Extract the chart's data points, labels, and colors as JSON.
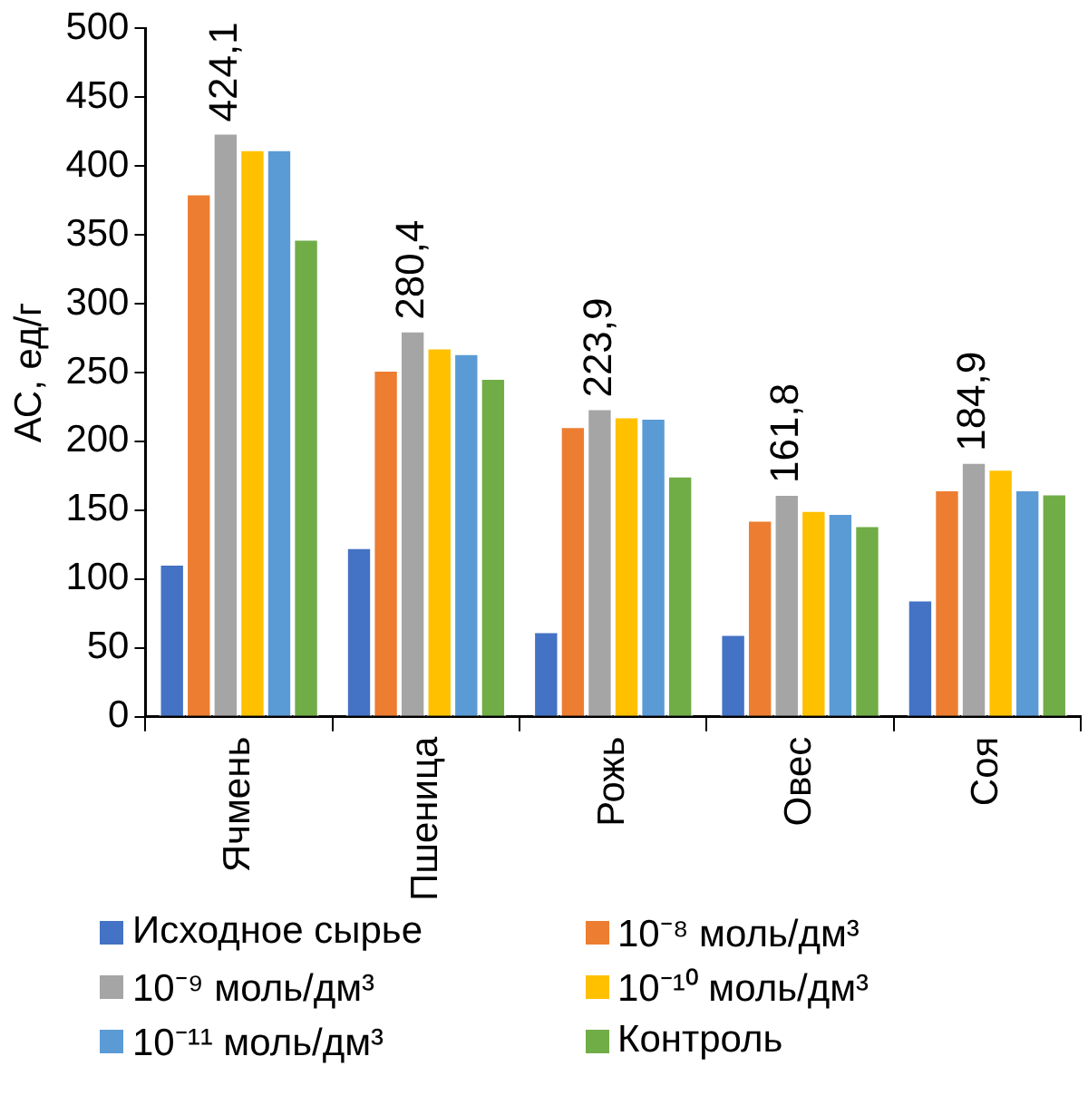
{
  "chart_data": {
    "type": "bar",
    "ylabel": "АС, ед/г",
    "categories": [
      "Ячмень",
      "Пшеница",
      "Рожь",
      "Овес",
      "Соя"
    ],
    "series": [
      {
        "name": "Исходное сырье",
        "color": "#4472c4",
        "values": [
          111,
          123,
          62,
          60,
          85
        ]
      },
      {
        "name": "10⁻⁸ моль/дм³",
        "color": "#ed7d31",
        "values": [
          380,
          252,
          211,
          143,
          165
        ]
      },
      {
        "name": "10⁻⁹ моль/дм³",
        "color": "#a5a5a5",
        "values": [
          424.1,
          280.4,
          223.9,
          161.8,
          184.9
        ],
        "value_labels": [
          "424,1",
          "280,4",
          "223,9",
          "161,8",
          "184,9"
        ]
      },
      {
        "name": "10⁻¹⁰ моль/дм³",
        "color": "#ffc000",
        "values": [
          412,
          268,
          218,
          150,
          180
        ]
      },
      {
        "name": "10⁻¹¹ моль/дм³",
        "color": "#5b9bd5",
        "values": [
          412,
          264,
          217,
          148,
          165
        ]
      },
      {
        "name": "Контроль",
        "color": "#70ad47",
        "values": [
          347,
          246,
          175,
          139,
          162
        ]
      }
    ],
    "ylim": [
      0,
      500
    ],
    "yticks": [
      0,
      50,
      100,
      150,
      200,
      250,
      300,
      350,
      400,
      450,
      500
    ],
    "grid": false,
    "legend": "bottom"
  }
}
